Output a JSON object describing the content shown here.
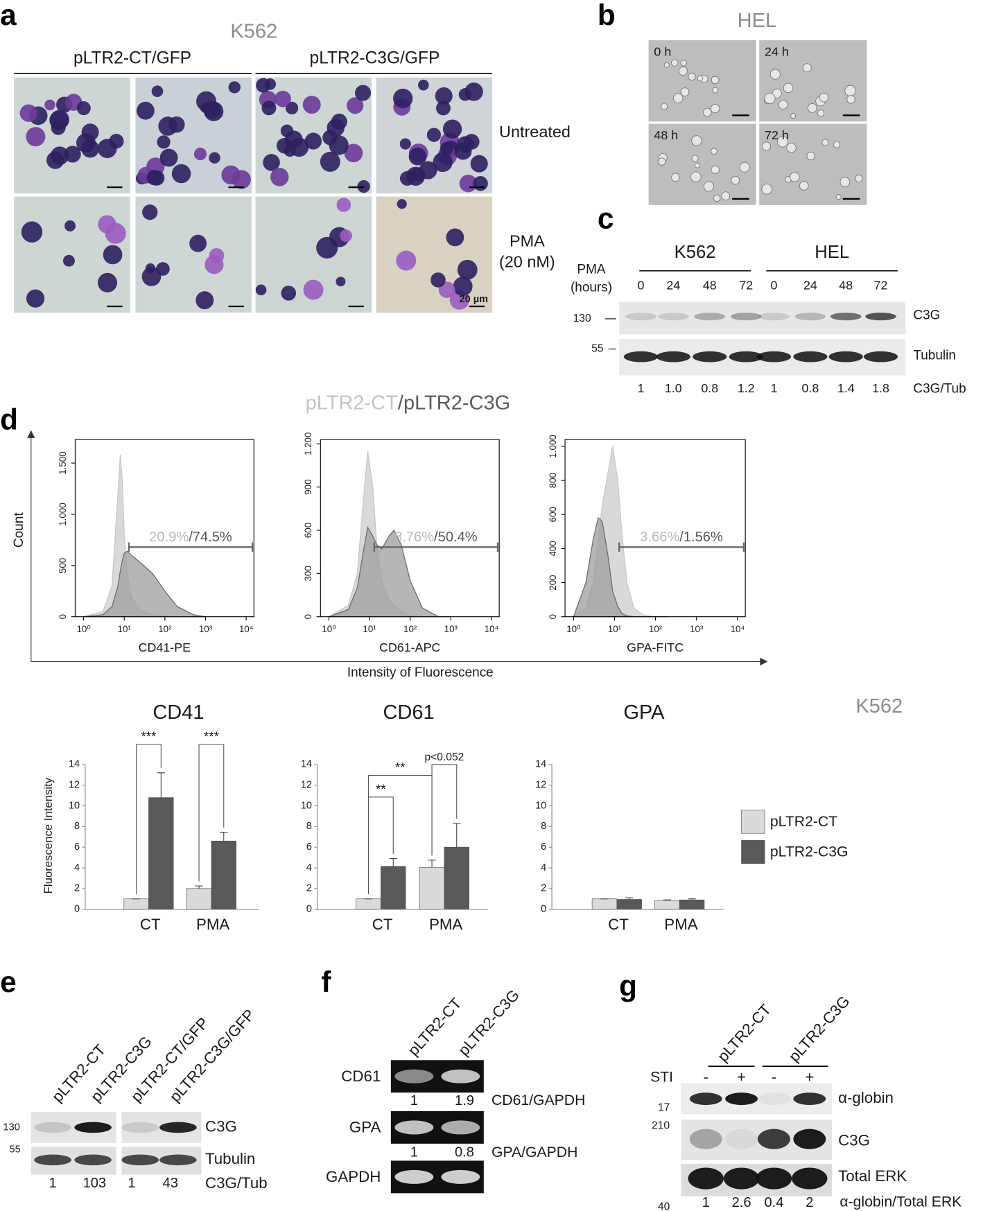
{
  "panel_a": {
    "label": "a",
    "cell_line": "K562",
    "groups": [
      "pLTR2-CT/GFP",
      "pLTR2-C3G/GFP"
    ],
    "rows": [
      [
        "Untreated"
      ],
      [
        "PMA",
        "(20 nM)"
      ]
    ],
    "scale_bar": "20 µm"
  },
  "panel_b": {
    "label": "b",
    "cell_line": "HEL",
    "times": [
      "0 h",
      "24 h",
      "48 h",
      "72 h"
    ]
  },
  "panel_c": {
    "label": "c",
    "cell_lines": [
      "K562",
      "HEL"
    ],
    "treatment": [
      "PMA",
      "(hours)"
    ],
    "times": [
      "0",
      "24",
      "48",
      "72",
      "0",
      "24",
      "48",
      "72"
    ],
    "markers": [
      "130",
      "55"
    ],
    "bands": [
      "C3G",
      "Tubulin"
    ],
    "ratio_label": "C3G/Tub",
    "ratios": [
      "1",
      "1.0",
      "0.8",
      "1.2",
      "1",
      "0.8",
      "1.4",
      "1.8"
    ]
  },
  "panel_d": {
    "label": "d",
    "title": [
      "pLTR2-CT",
      "/",
      "pLTR2-C3G"
    ],
    "y_label": "Count",
    "x_label": "Intensity of Fluorescence",
    "cell_line": "K562",
    "legend": [
      "pLTR2-CT",
      "pLTR2-C3G"
    ]
  },
  "chart_data": [
    {
      "type": "area",
      "x_label": "CD41-PE",
      "log_x": true,
      "xlim": [
        0.62,
        15500
      ],
      "xticks": [
        {
          "value": 1,
          "label": "10⁰"
        },
        {
          "value": 10,
          "label": "10¹"
        },
        {
          "value": 100,
          "label": "10²"
        },
        {
          "value": 1000,
          "label": "10³"
        },
        {
          "value": 10000,
          "label": "10⁴"
        }
      ],
      "ylim": [
        0,
        1730
      ],
      "yticks": [
        0,
        500,
        {
          "value": 1000,
          "label": "1.000"
        },
        {
          "value": 1500,
          "label": "1.500"
        }
      ],
      "x": [
        1,
        3,
        5,
        7,
        8,
        9,
        10,
        12,
        15,
        20,
        30,
        50,
        100,
        200,
        500,
        1000
      ],
      "series": [
        {
          "color": "#d9d9d9",
          "values": [
            0,
            50,
            300,
            1200,
            1580,
            1300,
            800,
            400,
            200,
            100,
            50,
            20,
            5,
            0,
            0,
            0
          ]
        },
        {
          "color": "#9e9e9e",
          "values": [
            0,
            20,
            100,
            300,
            450,
            550,
            620,
            640,
            600,
            560,
            500,
            420,
            250,
            100,
            20,
            0
          ]
        }
      ],
      "gate_labels": [
        "20.9%",
        "/",
        "74.5%"
      ]
    },
    {
      "type": "area",
      "x_label": "CD61-APC",
      "log_x": true,
      "xlim": [
        0.62,
        15500
      ],
      "xticks": [
        {
          "value": 1,
          "label": "10⁰"
        },
        {
          "value": 10,
          "label": "10¹"
        },
        {
          "value": 100,
          "label": "10²"
        },
        {
          "value": 1000,
          "label": "10³"
        },
        {
          "value": 10000,
          "label": "10⁴"
        }
      ],
      "ylim": [
        0,
        1230
      ],
      "yticks": [
        0,
        300,
        600,
        900,
        {
          "value": 1200,
          "label": "1.200"
        }
      ],
      "x": [
        1,
        3,
        5,
        7,
        9,
        12,
        15,
        20,
        30,
        40,
        60,
        100,
        200,
        500,
        1000
      ],
      "series": [
        {
          "color": "#d9d9d9",
          "values": [
            0,
            80,
            300,
            800,
            1150,
            900,
            500,
            250,
            120,
            80,
            40,
            10,
            0,
            0,
            0
          ]
        },
        {
          "color": "#9e9e9e",
          "values": [
            0,
            50,
            200,
            450,
            620,
            560,
            500,
            470,
            560,
            600,
            500,
            250,
            60,
            0,
            0
          ]
        }
      ],
      "gate_labels": [
        "8.76%",
        "/",
        "50.4%"
      ]
    },
    {
      "type": "area",
      "x_label": "GPA-FITC",
      "log_x": true,
      "xlim": [
        0.62,
        15500
      ],
      "xticks": [
        {
          "value": 1,
          "label": "10⁰"
        },
        {
          "value": 10,
          "label": "10¹"
        },
        {
          "value": 100,
          "label": "10²"
        },
        {
          "value": 1000,
          "label": "10³"
        },
        {
          "value": 10000,
          "label": "10⁴"
        }
      ],
      "ylim": [
        0,
        1040
      ],
      "yticks": [
        0,
        200,
        400,
        600,
        800,
        {
          "value": 1000,
          "label": "1.000"
        }
      ],
      "x": [
        1,
        2,
        3,
        4,
        5,
        7,
        9,
        12,
        15,
        20,
        30,
        50,
        100,
        200
      ],
      "series": [
        {
          "color": "#d9d9d9",
          "values": [
            0,
            50,
            200,
            450,
            650,
            850,
            1000,
            800,
            500,
            200,
            50,
            10,
            0,
            0
          ]
        },
        {
          "color": "#9e9e9e",
          "values": [
            0,
            200,
            450,
            580,
            560,
            350,
            150,
            60,
            20,
            5,
            0,
            0,
            0,
            0
          ]
        }
      ],
      "gate_labels": [
        "3.66%",
        "/",
        "1.56%"
      ]
    },
    {
      "type": "bar",
      "title": "CD41",
      "y_label": "Fluorescence Intensity",
      "categories": [
        "CT",
        "PMA"
      ],
      "series": [
        {
          "color": "#dadada",
          "values": [
            1,
            2
          ],
          "errors": [
            0,
            0.25
          ]
        },
        {
          "color": "#595959",
          "values": [
            10.8,
            6.6
          ],
          "errors": [
            2.4,
            0.85
          ]
        }
      ],
      "ylim": [
        0,
        14
      ],
      "yticks": [
        0,
        2,
        4,
        6,
        8,
        10,
        12,
        14
      ],
      "annotations": [
        "***",
        "***"
      ]
    },
    {
      "type": "bar",
      "title": "CD61",
      "categories": [
        "CT",
        "PMA"
      ],
      "series": [
        {
          "color": "#dadada",
          "values": [
            1,
            4.05
          ],
          "errors": [
            0,
            0.7
          ]
        },
        {
          "color": "#595959",
          "values": [
            4.15,
            6
          ],
          "errors": [
            0.75,
            2.3
          ]
        }
      ],
      "ylim": [
        0,
        14
      ],
      "yticks": [
        0,
        2,
        4,
        6,
        8,
        10,
        12,
        14
      ],
      "annotations": [
        "**",
        "**",
        "p<0.052"
      ]
    },
    {
      "type": "bar",
      "title": "GPA",
      "categories": [
        "CT",
        "PMA"
      ],
      "series": [
        {
          "color": "#dadada",
          "values": [
            1,
            0.85
          ],
          "errors": [
            0,
            0.05
          ]
        },
        {
          "color": "#595959",
          "values": [
            0.95,
            0.9
          ],
          "errors": [
            0.15,
            0.1
          ]
        }
      ],
      "ylim": [
        0,
        14
      ],
      "yticks": [
        0,
        2,
        4,
        6,
        8,
        10,
        12,
        14
      ],
      "annotations": []
    }
  ],
  "panel_e": {
    "label": "e",
    "lanes": [
      "pLTR2-CT",
      "pLTR2-C3G",
      "pLTR2-CT/GFP",
      "pLTR2-C3G/GFP"
    ],
    "markers": [
      "130",
      "55"
    ],
    "bands": [
      "C3G",
      "Tubulin"
    ],
    "ratio_label": "C3G/Tub",
    "ratios": [
      "1",
      "103",
      "1",
      "43"
    ]
  },
  "panel_f": {
    "label": "f",
    "lanes": [
      "pLTR2-CT",
      "pLTR2-C3G"
    ],
    "rows": [
      "CD61",
      "GPA",
      "GAPDH"
    ],
    "ratio_labels": [
      "CD61/GAPDH",
      "GPA/GAPDH"
    ],
    "ratios": [
      [
        "1",
        "1.9"
      ],
      [
        "1",
        "0.8"
      ]
    ]
  },
  "panel_g": {
    "label": "g",
    "lanes": [
      "pLTR2-CT",
      "pLTR2-C3G"
    ],
    "treatment": "STI",
    "signs": [
      "-",
      "+",
      "-",
      "+"
    ],
    "markers": [
      "17",
      "210",
      "40"
    ],
    "bands": [
      "α-globin",
      "C3G",
      "Total ERK"
    ],
    "ratio_label": "α-globin/Total ERK",
    "ratios": [
      "1",
      "2.6",
      "0.4",
      "2"
    ]
  }
}
